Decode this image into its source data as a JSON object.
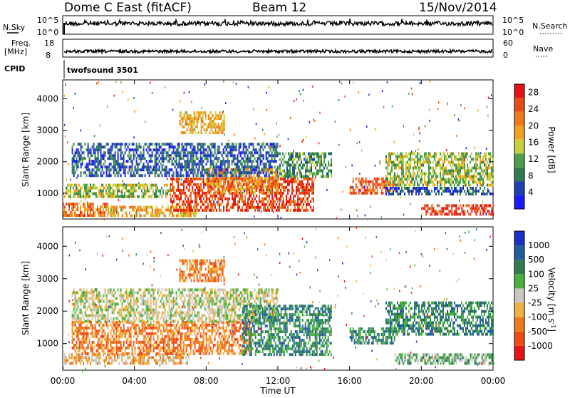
{
  "header": {
    "title": "Dome C East (fitACF)",
    "beam": "Beam 12",
    "date": "15/Nov/2014"
  },
  "strips": {
    "nsky_label": "N.Sky",
    "nsearch_label": "N.Search",
    "freq_label_top": "Freq.",
    "freq_label_unit": "[MHz]",
    "nave_label": "Nave",
    "cpid_label": "CPID",
    "cpid_value": "twofsound 3501",
    "noise_left_ticks": [
      "10^5",
      "10^0"
    ],
    "noise_right_ticks": [
      "10^5",
      "10^0"
    ],
    "freq_ticks": [
      "18",
      "8"
    ],
    "nave_ticks": [
      "60",
      "0"
    ]
  },
  "colors": {
    "power": [
      "#1a1aff",
      "#1f3fb0",
      "#2e7d55",
      "#4aa04a",
      "#c8d23c",
      "#f2a01e",
      "#f07818",
      "#e84c14",
      "#e81414"
    ],
    "velocity": [
      "#e81414",
      "#f04a14",
      "#f07818",
      "#f2b040",
      "#c8c8c0",
      "#4ab040",
      "#2e7d55",
      "#1f5fa0",
      "#1a30c8"
    ]
  },
  "chart_data": [
    {
      "type": "heatmap",
      "panel": "power",
      "ylabel": "Slant Range [km]",
      "xlabel": "Time UT",
      "x_ticks": [
        "00:00",
        "04:00",
        "08:00",
        "12:00",
        "16:00",
        "20:00",
        "00:00"
      ],
      "x_range_hours": [
        0,
        24
      ],
      "y_ticks": [
        1000,
        2000,
        3000,
        4000
      ],
      "ylim": [
        180,
        4600
      ],
      "colorbar_label": "Power [dB]",
      "colorbar_ticks": [
        "4",
        "8",
        "12",
        "16",
        "20",
        "24",
        "28"
      ],
      "colorbar_range": [
        0,
        30
      ],
      "regions": [
        {
          "t": [
            0.0,
            2.5
          ],
          "r": [
            300,
            700
          ],
          "level": 22
        },
        {
          "t": [
            2.5,
            7.5
          ],
          "r": [
            300,
            600
          ],
          "level": 18
        },
        {
          "t": [
            0.0,
            6.0
          ],
          "r": [
            900,
            1300
          ],
          "level": 14
        },
        {
          "t": [
            6.0,
            14.0
          ],
          "r": [
            500,
            1500
          ],
          "level": 26
        },
        {
          "t": [
            8.0,
            12.0
          ],
          "r": [
            1000,
            1800
          ],
          "level": 20
        },
        {
          "t": [
            0.5,
            12.0
          ],
          "r": [
            1600,
            2600
          ],
          "level": 6
        },
        {
          "t": [
            12.0,
            15.0
          ],
          "r": [
            1500,
            2300
          ],
          "level": 10
        },
        {
          "t": [
            16.0,
            18.5
          ],
          "r": [
            1000,
            1500
          ],
          "level": 24
        },
        {
          "t": [
            18.0,
            24.0
          ],
          "r": [
            1300,
            2300
          ],
          "level": 14
        },
        {
          "t": [
            18.0,
            24.0
          ],
          "r": [
            1000,
            1200
          ],
          "level": 6
        },
        {
          "t": [
            20.0,
            24.0
          ],
          "r": [
            350,
            650
          ],
          "level": 27
        },
        {
          "t": [
            6.5,
            9.0
          ],
          "r": [
            2900,
            3600
          ],
          "level": 18
        }
      ]
    },
    {
      "type": "heatmap",
      "panel": "velocity",
      "ylabel": "Slant Range [km]",
      "xlabel": "Time UT",
      "x_ticks": [
        "00:00",
        "04:00",
        "08:00",
        "12:00",
        "16:00",
        "20:00",
        "00:00"
      ],
      "x_range_hours": [
        0,
        24
      ],
      "y_ticks": [
        1000,
        2000,
        3000,
        4000
      ],
      "ylim": [
        180,
        4600
      ],
      "colorbar_label": "Velocity [m s^-1]",
      "colorbar_ticks": [
        "-1000",
        "-500",
        "-100",
        "-25",
        "25",
        "100",
        "500",
        "1000"
      ],
      "regions": [
        {
          "t": [
            0.0,
            7.0
          ],
          "r": [
            350,
            700
          ],
          "level": 3
        },
        {
          "t": [
            0.5,
            10.5
          ],
          "r": [
            700,
            1700
          ],
          "level": 2
        },
        {
          "t": [
            0.5,
            12.0
          ],
          "r": [
            1700,
            2700
          ],
          "level": 4
        },
        {
          "t": [
            10.0,
            15.0
          ],
          "r": [
            700,
            2200
          ],
          "level": 6
        },
        {
          "t": [
            16.0,
            18.5
          ],
          "r": [
            1000,
            1500
          ],
          "level": 6
        },
        {
          "t": [
            18.0,
            24.0
          ],
          "r": [
            1300,
            2300
          ],
          "level": 6
        },
        {
          "t": [
            18.5,
            24.0
          ],
          "r": [
            350,
            700
          ],
          "level": 5
        },
        {
          "t": [
            6.5,
            9.0
          ],
          "r": [
            2900,
            3600
          ],
          "level": 2
        }
      ]
    }
  ]
}
